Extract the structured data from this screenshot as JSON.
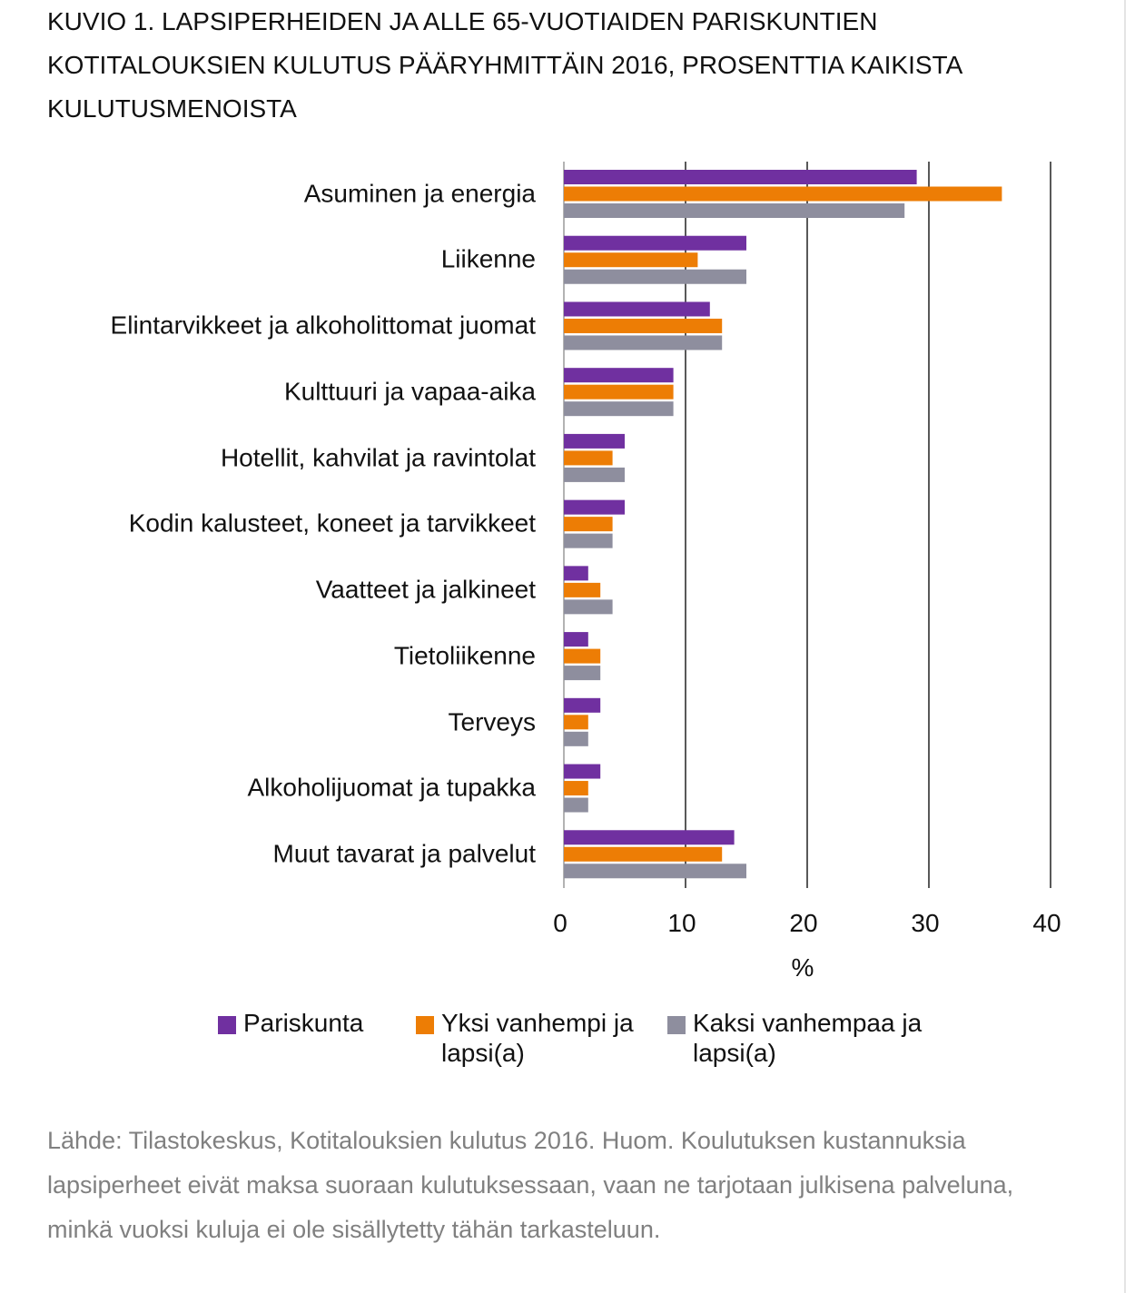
{
  "chart_data": {
    "type": "bar",
    "orientation": "horizontal",
    "title": "KUVIO 1. LAPSIPERHEIDEN JA ALLE 65-VUOTIAIDEN PARISKUNTIEN KOTITALOUKSIEN KULUTUS PÄÄRYHMITTÄIN 2016, PROSENTTIA KAIKISTA KULUTUSMENOISTA",
    "categories": [
      "Asuminen ja energia",
      "Liikenne",
      "Elintarvikkeet ja alkoholittomat juomat",
      "Kulttuuri ja vapaa-aika",
      "Hotellit, kahvilat ja ravintolat",
      "Kodin kalusteet, koneet ja tarvikkeet",
      "Vaatteet ja jalkineet",
      "Tietoliikenne",
      "Terveys",
      "Alkoholijuomat ja tupakka",
      "Muut tavarat ja palvelut"
    ],
    "series": [
      {
        "name": "Pariskunta",
        "color": "#7030a0",
        "values": [
          29,
          15,
          12,
          9,
          5,
          5,
          2,
          2,
          3,
          3,
          14
        ]
      },
      {
        "name": "Yksi vanhempi ja lapsi(a)",
        "color": "#ed7d05",
        "values": [
          36,
          11,
          13,
          9,
          4,
          4,
          3,
          3,
          2,
          2,
          13
        ]
      },
      {
        "name": "Kaksi vanhempaa ja lapsi(a)",
        "color": "#8e8e9e",
        "values": [
          28,
          15,
          13,
          9,
          5,
          4,
          4,
          3,
          2,
          2,
          15
        ]
      }
    ],
    "xlim": [
      0,
      40
    ],
    "xticks": [
      0,
      10,
      20,
      30,
      40
    ],
    "xlabel": "%",
    "grid": true,
    "legend": "bottom"
  },
  "source_note": "Lähde: Tilastokeskus, Kotitalouksien kulutus 2016. Huom. Koulutuksen kustannuksia lapsiperheet eivät maksa suoraan kulutuksessaan, vaan ne tarjotaan julkisena palveluna, minkä vuoksi kuluja ei ole sisällytetty tähän tarkasteluun."
}
